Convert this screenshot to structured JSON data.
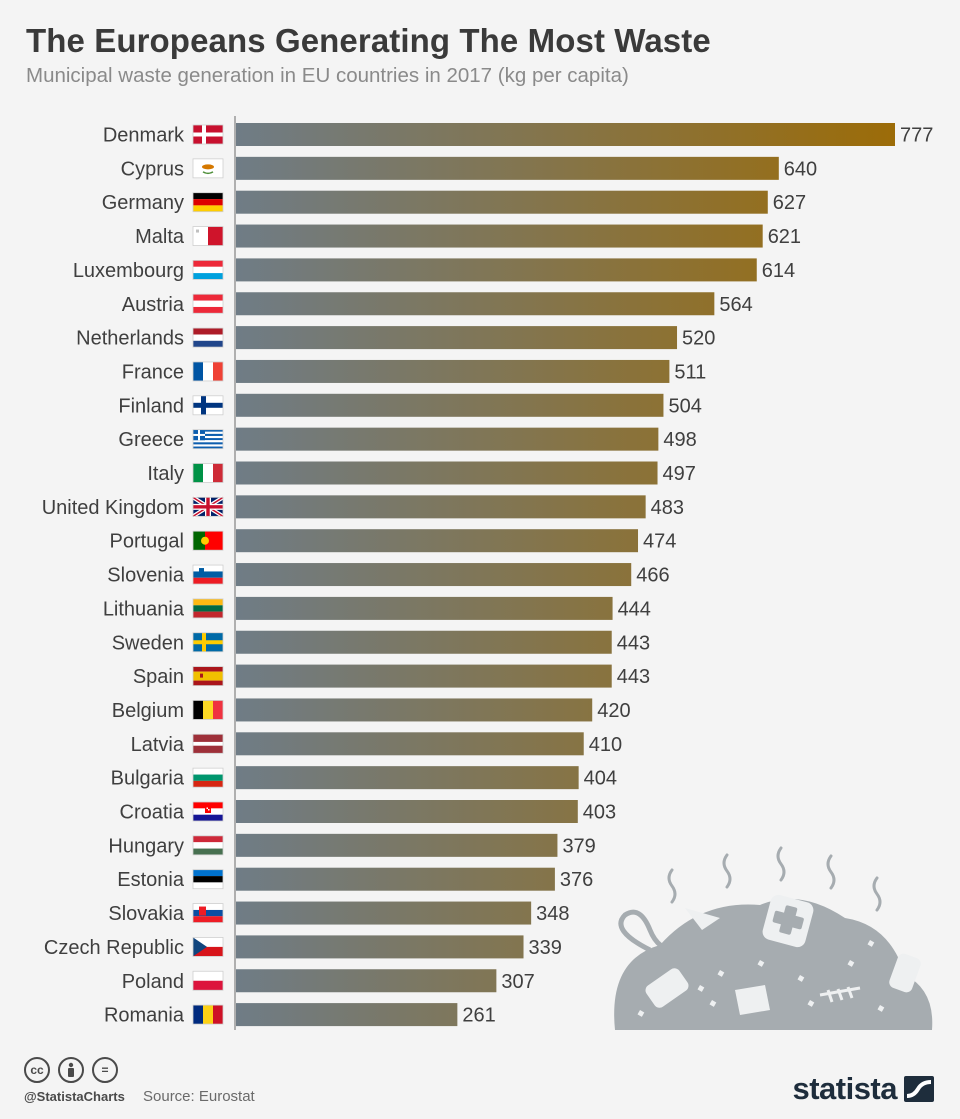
{
  "title": "The Europeans Generating The Most Waste",
  "subtitle": "Municipal waste generation in EU countries in 2017 (kg per capita)",
  "footer": {
    "handle": "@StatistaCharts",
    "source": "Source: Eurostat",
    "brand": "statista",
    "license_icons": [
      "cc-icon",
      "attribution-icon",
      "no-derivatives-icon"
    ]
  },
  "colors": {
    "bar_start": "#6f7c86",
    "bar_end": "#9c6c08",
    "label": "#3f3f3f",
    "axis": "#6a6a6a",
    "illustration": "#a6acb0"
  },
  "chart_data": {
    "type": "bar",
    "orientation": "horizontal",
    "unit": "kg per capita",
    "categories": [
      "Denmark",
      "Cyprus",
      "Germany",
      "Malta",
      "Luxembourg",
      "Austria",
      "Netherlands",
      "France",
      "Finland",
      "Greece",
      "Italy",
      "United Kingdom",
      "Portugal",
      "Slovenia",
      "Lithuania",
      "Sweden",
      "Spain",
      "Belgium",
      "Latvia",
      "Bulgaria",
      "Croatia",
      "Hungary",
      "Estonia",
      "Slovakia",
      "Czech Republic",
      "Poland",
      "Romania"
    ],
    "values": [
      777,
      640,
      627,
      621,
      614,
      564,
      520,
      511,
      504,
      498,
      497,
      483,
      474,
      466,
      444,
      443,
      443,
      420,
      410,
      404,
      403,
      379,
      376,
      348,
      339,
      307,
      261
    ],
    "flags": [
      "denmark-flag",
      "cyprus-flag",
      "germany-flag",
      "malta-flag",
      "luxembourg-flag",
      "austria-flag",
      "netherlands-flag",
      "france-flag",
      "finland-flag",
      "greece-flag",
      "italy-flag",
      "united-kingdom-flag",
      "portugal-flag",
      "slovenia-flag",
      "lithuania-flag",
      "sweden-flag",
      "spain-flag",
      "belgium-flag",
      "latvia-flag",
      "bulgaria-flag",
      "croatia-flag",
      "hungary-flag",
      "estonia-flag",
      "slovakia-flag",
      "czech-republic-flag",
      "poland-flag",
      "romania-flag"
    ],
    "xlim": [
      0,
      777
    ],
    "grid": false,
    "legend": "none"
  }
}
